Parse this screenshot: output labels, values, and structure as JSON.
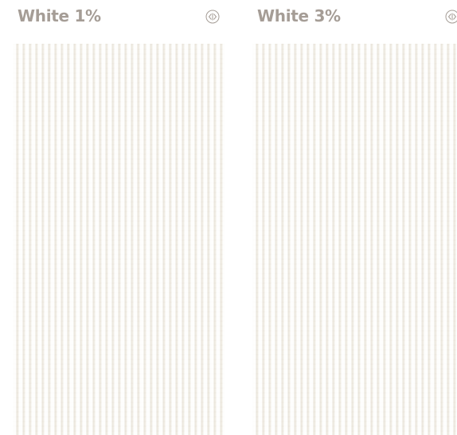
{
  "swatches": [
    {
      "name": "White 1%"
    },
    {
      "name": "White 3%"
    }
  ]
}
